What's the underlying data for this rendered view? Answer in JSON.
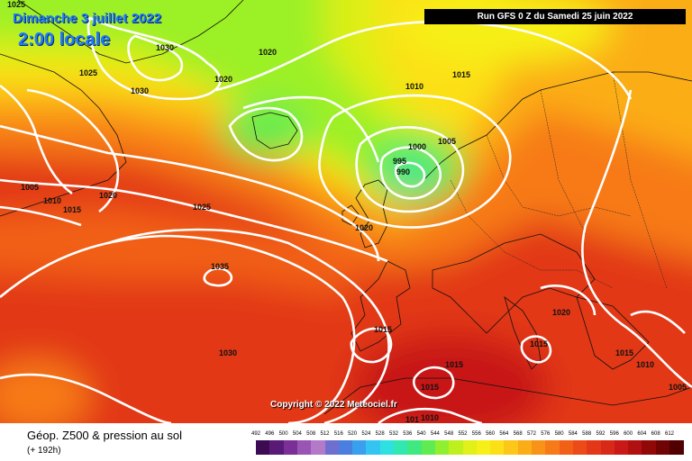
{
  "header": {
    "date": "Dimanche 3 juillet 2022",
    "time": "2:00 locale",
    "run": "Run GFS 0 Z du Samedi 25 juin 2022"
  },
  "copyright": "Copyright © 2022 Meteociel.fr",
  "legend": {
    "title": "Géop. Z500 & pression au sol",
    "subtitle": "(+ 192h)",
    "ticks": [
      "492",
      "496",
      "500",
      "504",
      "508",
      "512",
      "516",
      "520",
      "524",
      "528",
      "532",
      "536",
      "540",
      "544",
      "548",
      "552",
      "556",
      "560",
      "564",
      "568",
      "572",
      "576",
      "580",
      "584",
      "588",
      "592",
      "596",
      "600",
      "604",
      "608",
      "612"
    ],
    "colors": [
      "#3d0b52",
      "#5a1a78",
      "#7a3096",
      "#9a55b4",
      "#b27ac8",
      "#6f6fd0",
      "#4a7fe0",
      "#3aa0ee",
      "#33c4f2",
      "#2fe0e0",
      "#30e8b0",
      "#40e880",
      "#60ec50",
      "#90f030",
      "#bef020",
      "#e0f018",
      "#f6f018",
      "#fbe018",
      "#fcc718",
      "#fbad18",
      "#f99318",
      "#f77a18",
      "#f26018",
      "#ec4a18",
      "#e33818",
      "#d82818",
      "#c81818",
      "#b01010",
      "#900808",
      "#700404",
      "#500000"
    ]
  },
  "isobars": [
    {
      "id": "1025-nw",
      "label": "1025"
    },
    {
      "id": "1030-nw",
      "label": "1030"
    },
    {
      "id": "1030-nw2",
      "label": "1030"
    },
    {
      "id": "1025-nw2",
      "label": "1025"
    },
    {
      "id": "1020-greenland",
      "label": "1020"
    },
    {
      "id": "1020-greenland2",
      "label": "1020"
    },
    {
      "id": "1010-north",
      "label": "1010"
    },
    {
      "id": "1015-north",
      "label": "1015"
    },
    {
      "id": "1000-low",
      "label": "1000"
    },
    {
      "id": "1005-low",
      "label": "1005"
    },
    {
      "id": "995-low",
      "label": "995"
    },
    {
      "id": "990-low",
      "label": "990"
    },
    {
      "id": "1005-west",
      "label": "1005"
    },
    {
      "id": "1010-west",
      "label": "1010"
    },
    {
      "id": "1015-west",
      "label": "1015"
    },
    {
      "id": "1020-west",
      "label": "1020"
    },
    {
      "id": "1025-atl",
      "label": "1025"
    },
    {
      "id": "1020-uk",
      "label": "1020"
    },
    {
      "id": "1035-azores",
      "label": "1035"
    },
    {
      "id": "1030-atl",
      "label": "1030"
    },
    {
      "id": "1015-iberia",
      "label": "1015"
    },
    {
      "id": "1020-italy",
      "label": "1020"
    },
    {
      "id": "1015-italy",
      "label": "1015"
    },
    {
      "id": "1015-balkan",
      "label": "1015"
    },
    {
      "id": "1010-balkan",
      "label": "1010"
    },
    {
      "id": "1005-east",
      "label": "1005"
    },
    {
      "id": "1015-med",
      "label": "1015"
    },
    {
      "id": "1015-med2",
      "label": "1015"
    },
    {
      "id": "1010-africa",
      "label": "1010"
    },
    {
      "id": "1010-africa2",
      "label": "101"
    }
  ]
}
